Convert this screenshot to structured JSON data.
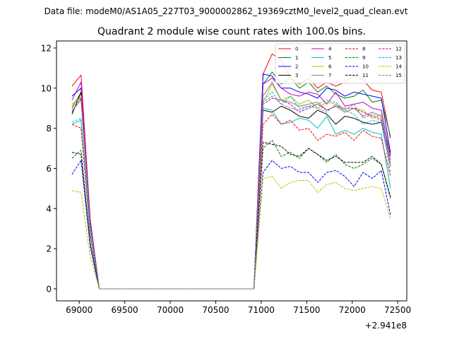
{
  "suptitle": "Data file: modeM0/AS1A05_227T03_9000002862_19369cztM0_level2_quad_clean.evt",
  "chart_data": {
    "type": "line",
    "title": "Quadrant 2 module wise count rates with 100.0s bins.",
    "xlabel": "",
    "ylabel": "",
    "x_offset_label": "+2.941e8",
    "xlim": [
      68750,
      72600
    ],
    "ylim": [
      -0.6,
      12.35
    ],
    "xticks": [
      69000,
      69500,
      70000,
      70500,
      71000,
      71500,
      72000,
      72500
    ],
    "xtick_labels": [
      "69000",
      "69500",
      "70000",
      "70500",
      "71000",
      "71500",
      "72000",
      "72500"
    ],
    "yticks": [
      0,
      2,
      4,
      6,
      8,
      10,
      12
    ],
    "ytick_labels": [
      "0",
      "2",
      "4",
      "6",
      "8",
      "10",
      "12"
    ],
    "legend_position": "upper-right",
    "legend_columns": 4,
    "x": [
      68920,
      69020,
      69120,
      69220,
      69320,
      69420,
      69520,
      69620,
      69720,
      69820,
      69920,
      70020,
      70120,
      70220,
      70320,
      70420,
      70520,
      70620,
      70720,
      70820,
      70920,
      71020,
      71120,
      71220,
      71320,
      71420,
      71520,
      71620,
      71720,
      71820,
      71920,
      72020,
      72120,
      72220,
      72320,
      72420
    ],
    "series": [
      {
        "name": "0",
        "color": "#ff0000",
        "dash": false,
        "values": [
          10.1,
          10.65,
          3.5,
          0,
          0,
          0,
          0,
          0,
          0,
          0,
          0,
          0,
          0,
          0,
          0,
          0,
          0,
          0,
          0,
          0,
          0,
          10.7,
          11.7,
          11.4,
          10.5,
          10.2,
          10.5,
          10.0,
          10.3,
          10.1,
          10.3,
          10.6,
          10.4,
          9.9,
          9.8,
          7.5
        ]
      },
      {
        "name": "1",
        "color": "#008000",
        "dash": false,
        "values": [
          9.0,
          9.8,
          3.3,
          0,
          0,
          0,
          0,
          0,
          0,
          0,
          0,
          0,
          0,
          0,
          0,
          0,
          0,
          0,
          0,
          0,
          0,
          10.2,
          10.8,
          10.2,
          10.5,
          10.0,
          10.3,
          9.8,
          10.1,
          9.7,
          9.5,
          9.6,
          9.9,
          9.3,
          9.4,
          7.6
        ]
      },
      {
        "name": "2",
        "color": "#0000ff",
        "dash": false,
        "values": [
          9.6,
          10.0,
          3.4,
          0,
          0,
          0,
          0,
          0,
          0,
          0,
          0,
          0,
          0,
          0,
          0,
          0,
          0,
          0,
          0,
          0,
          0,
          10.7,
          10.6,
          10.0,
          10.0,
          9.8,
          9.7,
          9.5,
          10.0,
          9.9,
          9.6,
          9.8,
          9.7,
          9.6,
          9.5,
          6.8
        ]
      },
      {
        "name": "3",
        "color": "#000000",
        "dash": false,
        "values": [
          8.7,
          9.8,
          3.3,
          0,
          0,
          0,
          0,
          0,
          0,
          0,
          0,
          0,
          0,
          0,
          0,
          0,
          0,
          0,
          0,
          0,
          0,
          8.9,
          8.8,
          9.1,
          8.9,
          8.6,
          8.5,
          8.9,
          8.7,
          8.2,
          8.6,
          8.5,
          8.3,
          8.2,
          8.3,
          6.7
        ]
      },
      {
        "name": "4",
        "color": "#c000c0",
        "dash": false,
        "values": [
          9.4,
          10.3,
          3.4,
          0,
          0,
          0,
          0,
          0,
          0,
          0,
          0,
          0,
          0,
          0,
          0,
          0,
          0,
          0,
          0,
          0,
          0,
          10.2,
          10.5,
          10.0,
          9.7,
          9.6,
          9.8,
          9.7,
          9.2,
          9.8,
          9.1,
          9.2,
          9.3,
          9.0,
          8.9,
          6.6
        ]
      },
      {
        "name": "5",
        "color": "#00c0c0",
        "dash": false,
        "values": [
          8.2,
          8.4,
          2.8,
          0,
          0,
          0,
          0,
          0,
          0,
          0,
          0,
          0,
          0,
          0,
          0,
          0,
          0,
          0,
          0,
          0,
          0,
          9.0,
          8.9,
          8.2,
          8.3,
          8.5,
          8.4,
          8.0,
          8.6,
          7.7,
          7.9,
          7.7,
          8.0,
          7.8,
          7.7,
          5.0
        ]
      },
      {
        "name": "6",
        "color": "#c0c000",
        "dash": false,
        "values": [
          9.1,
          9.6,
          3.2,
          0,
          0,
          0,
          0,
          0,
          0,
          0,
          0,
          0,
          0,
          0,
          0,
          0,
          0,
          0,
          0,
          0,
          0,
          9.3,
          10.2,
          9.4,
          9.6,
          9.2,
          9.4,
          9.0,
          9.3,
          9.2,
          8.8,
          9.0,
          8.9,
          8.5,
          8.7,
          6.2
        ]
      },
      {
        "name": "7",
        "color": "#808080",
        "dash": false,
        "values": [
          9.2,
          9.5,
          3.2,
          0,
          0,
          0,
          0,
          0,
          0,
          0,
          0,
          0,
          0,
          0,
          0,
          0,
          0,
          0,
          0,
          0,
          0,
          9.6,
          10.3,
          9.4,
          9.3,
          9.1,
          9.2,
          9.3,
          8.9,
          9.1,
          8.8,
          9.0,
          8.6,
          8.8,
          8.6,
          6.4
        ]
      },
      {
        "name": "8",
        "color": "#ff0000",
        "dash": true,
        "values": [
          8.2,
          8.0,
          2.7,
          0,
          0,
          0,
          0,
          0,
          0,
          0,
          0,
          0,
          0,
          0,
          0,
          0,
          0,
          0,
          0,
          0,
          0,
          8.2,
          8.7,
          8.2,
          8.4,
          7.9,
          8.0,
          7.4,
          7.7,
          7.6,
          7.8,
          7.4,
          7.9,
          7.6,
          7.5,
          5.6
        ]
      },
      {
        "name": "9",
        "color": "#008000",
        "dash": true,
        "values": [
          6.5,
          6.9,
          2.3,
          0,
          0,
          0,
          0,
          0,
          0,
          0,
          0,
          0,
          0,
          0,
          0,
          0,
          0,
          0,
          0,
          0,
          0,
          7.0,
          7.4,
          6.6,
          6.8,
          6.5,
          7.0,
          6.7,
          6.3,
          6.7,
          6.2,
          6.0,
          6.2,
          6.5,
          6.2,
          4.5
        ]
      },
      {
        "name": "10",
        "color": "#0000ff",
        "dash": true,
        "values": [
          5.7,
          6.4,
          2.1,
          0,
          0,
          0,
          0,
          0,
          0,
          0,
          0,
          0,
          0,
          0,
          0,
          0,
          0,
          0,
          0,
          0,
          0,
          5.8,
          6.4,
          6.0,
          6.1,
          5.8,
          5.8,
          5.3,
          5.8,
          5.9,
          5.6,
          5.1,
          5.8,
          5.5,
          5.9,
          3.7
        ]
      },
      {
        "name": "11",
        "color": "#000000",
        "dash": true,
        "values": [
          6.8,
          6.7,
          2.3,
          0,
          0,
          0,
          0,
          0,
          0,
          0,
          0,
          0,
          0,
          0,
          0,
          0,
          0,
          0,
          0,
          0,
          0,
          7.3,
          7.2,
          7.1,
          6.7,
          6.6,
          7.0,
          6.7,
          6.4,
          6.6,
          6.3,
          6.3,
          6.3,
          6.6,
          6.2,
          4.6
        ]
      },
      {
        "name": "12",
        "color": "#c000c0",
        "dash": true,
        "values": [
          8.8,
          9.5,
          3.2,
          0,
          0,
          0,
          0,
          0,
          0,
          0,
          0,
          0,
          0,
          0,
          0,
          0,
          0,
          0,
          0,
          0,
          0,
          9.2,
          9.5,
          9.4,
          9.2,
          8.8,
          9.0,
          9.2,
          8.9,
          9.1,
          9.0,
          9.0,
          8.8,
          8.6,
          8.4,
          6.1
        ]
      },
      {
        "name": "13",
        "color": "#00c0c0",
        "dash": true,
        "values": [
          8.3,
          8.5,
          2.8,
          0,
          0,
          0,
          0,
          0,
          0,
          0,
          0,
          0,
          0,
          0,
          0,
          0,
          0,
          0,
          0,
          0,
          0,
          9.4,
          9.8,
          9.2,
          9.6,
          9.0,
          9.1,
          9.2,
          9.4,
          9.3,
          8.9,
          8.7,
          8.2,
          8.4,
          8.3,
          5.8
        ]
      },
      {
        "name": "14",
        "color": "#c0c000",
        "dash": true,
        "values": [
          4.9,
          4.8,
          1.6,
          0,
          0,
          0,
          0,
          0,
          0,
          0,
          0,
          0,
          0,
          0,
          0,
          0,
          0,
          0,
          0,
          0,
          0,
          5.5,
          5.6,
          5.0,
          5.3,
          5.4,
          5.4,
          4.8,
          5.2,
          5.3,
          5.0,
          4.9,
          5.0,
          5.1,
          5.0,
          3.5
        ]
      },
      {
        "name": "15",
        "color": "#808080",
        "dash": true,
        "values": [
          8.9,
          9.4,
          3.1,
          0,
          0,
          0,
          0,
          0,
          0,
          0,
          0,
          0,
          0,
          0,
          0,
          0,
          0,
          0,
          0,
          0,
          0,
          9.3,
          9.6,
          9.2,
          9.0,
          8.9,
          9.1,
          9.0,
          8.8,
          9.2,
          8.9,
          9.2,
          8.5,
          8.7,
          8.5,
          6.3
        ]
      }
    ]
  }
}
